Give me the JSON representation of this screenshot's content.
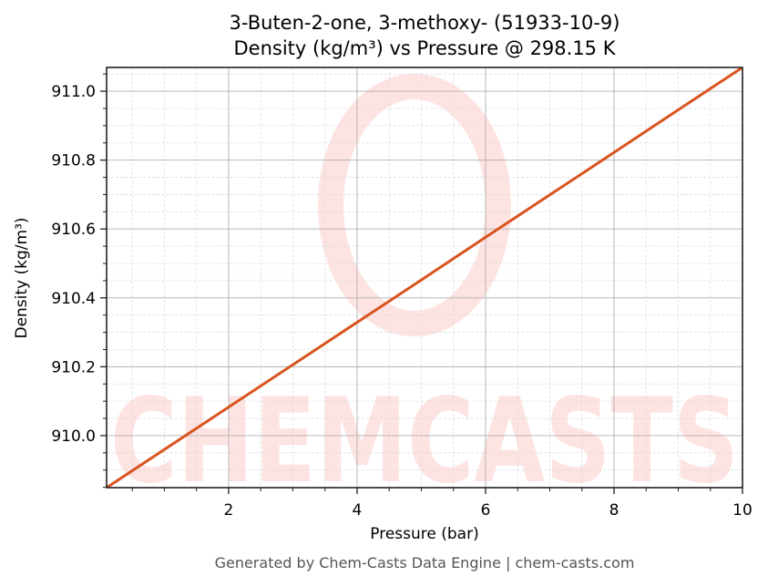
{
  "title": {
    "line1": "3-Buten-2-one, 3-methoxy- (51933-10-9)",
    "line2": "Density (kg/m³) vs Pressure @ 298.15 K"
  },
  "axes": {
    "xlabel": "Pressure (bar)",
    "ylabel": "Density (kg/m³)",
    "x_ticks": [
      "2",
      "4",
      "6",
      "8",
      "10"
    ],
    "y_ticks": [
      "910.0",
      "910.2",
      "910.4",
      "910.6",
      "910.8",
      "911.0"
    ]
  },
  "footer": "Generated by Chem-Casts Data Engine | chem-casts.com",
  "watermark": "CHEMCASTS",
  "colors": {
    "line": "#d9541e",
    "watermark": "#fde3e1",
    "grid_major": "#b0b0b0",
    "grid_minor": "#dddddd",
    "footer_text": "#555555"
  },
  "chart_data": {
    "type": "line",
    "title": "3-Buten-2-one, 3-methoxy- (51933-10-9) Density (kg/m³) vs Pressure @ 298.15 K",
    "xlabel": "Pressure (bar)",
    "ylabel": "Density (kg/m³)",
    "xlim": [
      0.1,
      10
    ],
    "ylim": [
      909.849,
      911.069
    ],
    "grid": true,
    "legend": null,
    "series": [
      {
        "name": "Density",
        "x": [
          0.1,
          1,
          2,
          3,
          4,
          5,
          6,
          7,
          8,
          9,
          10
        ],
        "values": [
          909.849,
          909.96,
          910.083,
          910.206,
          910.329,
          910.452,
          910.576,
          910.699,
          910.822,
          910.946,
          911.069
        ]
      }
    ]
  }
}
